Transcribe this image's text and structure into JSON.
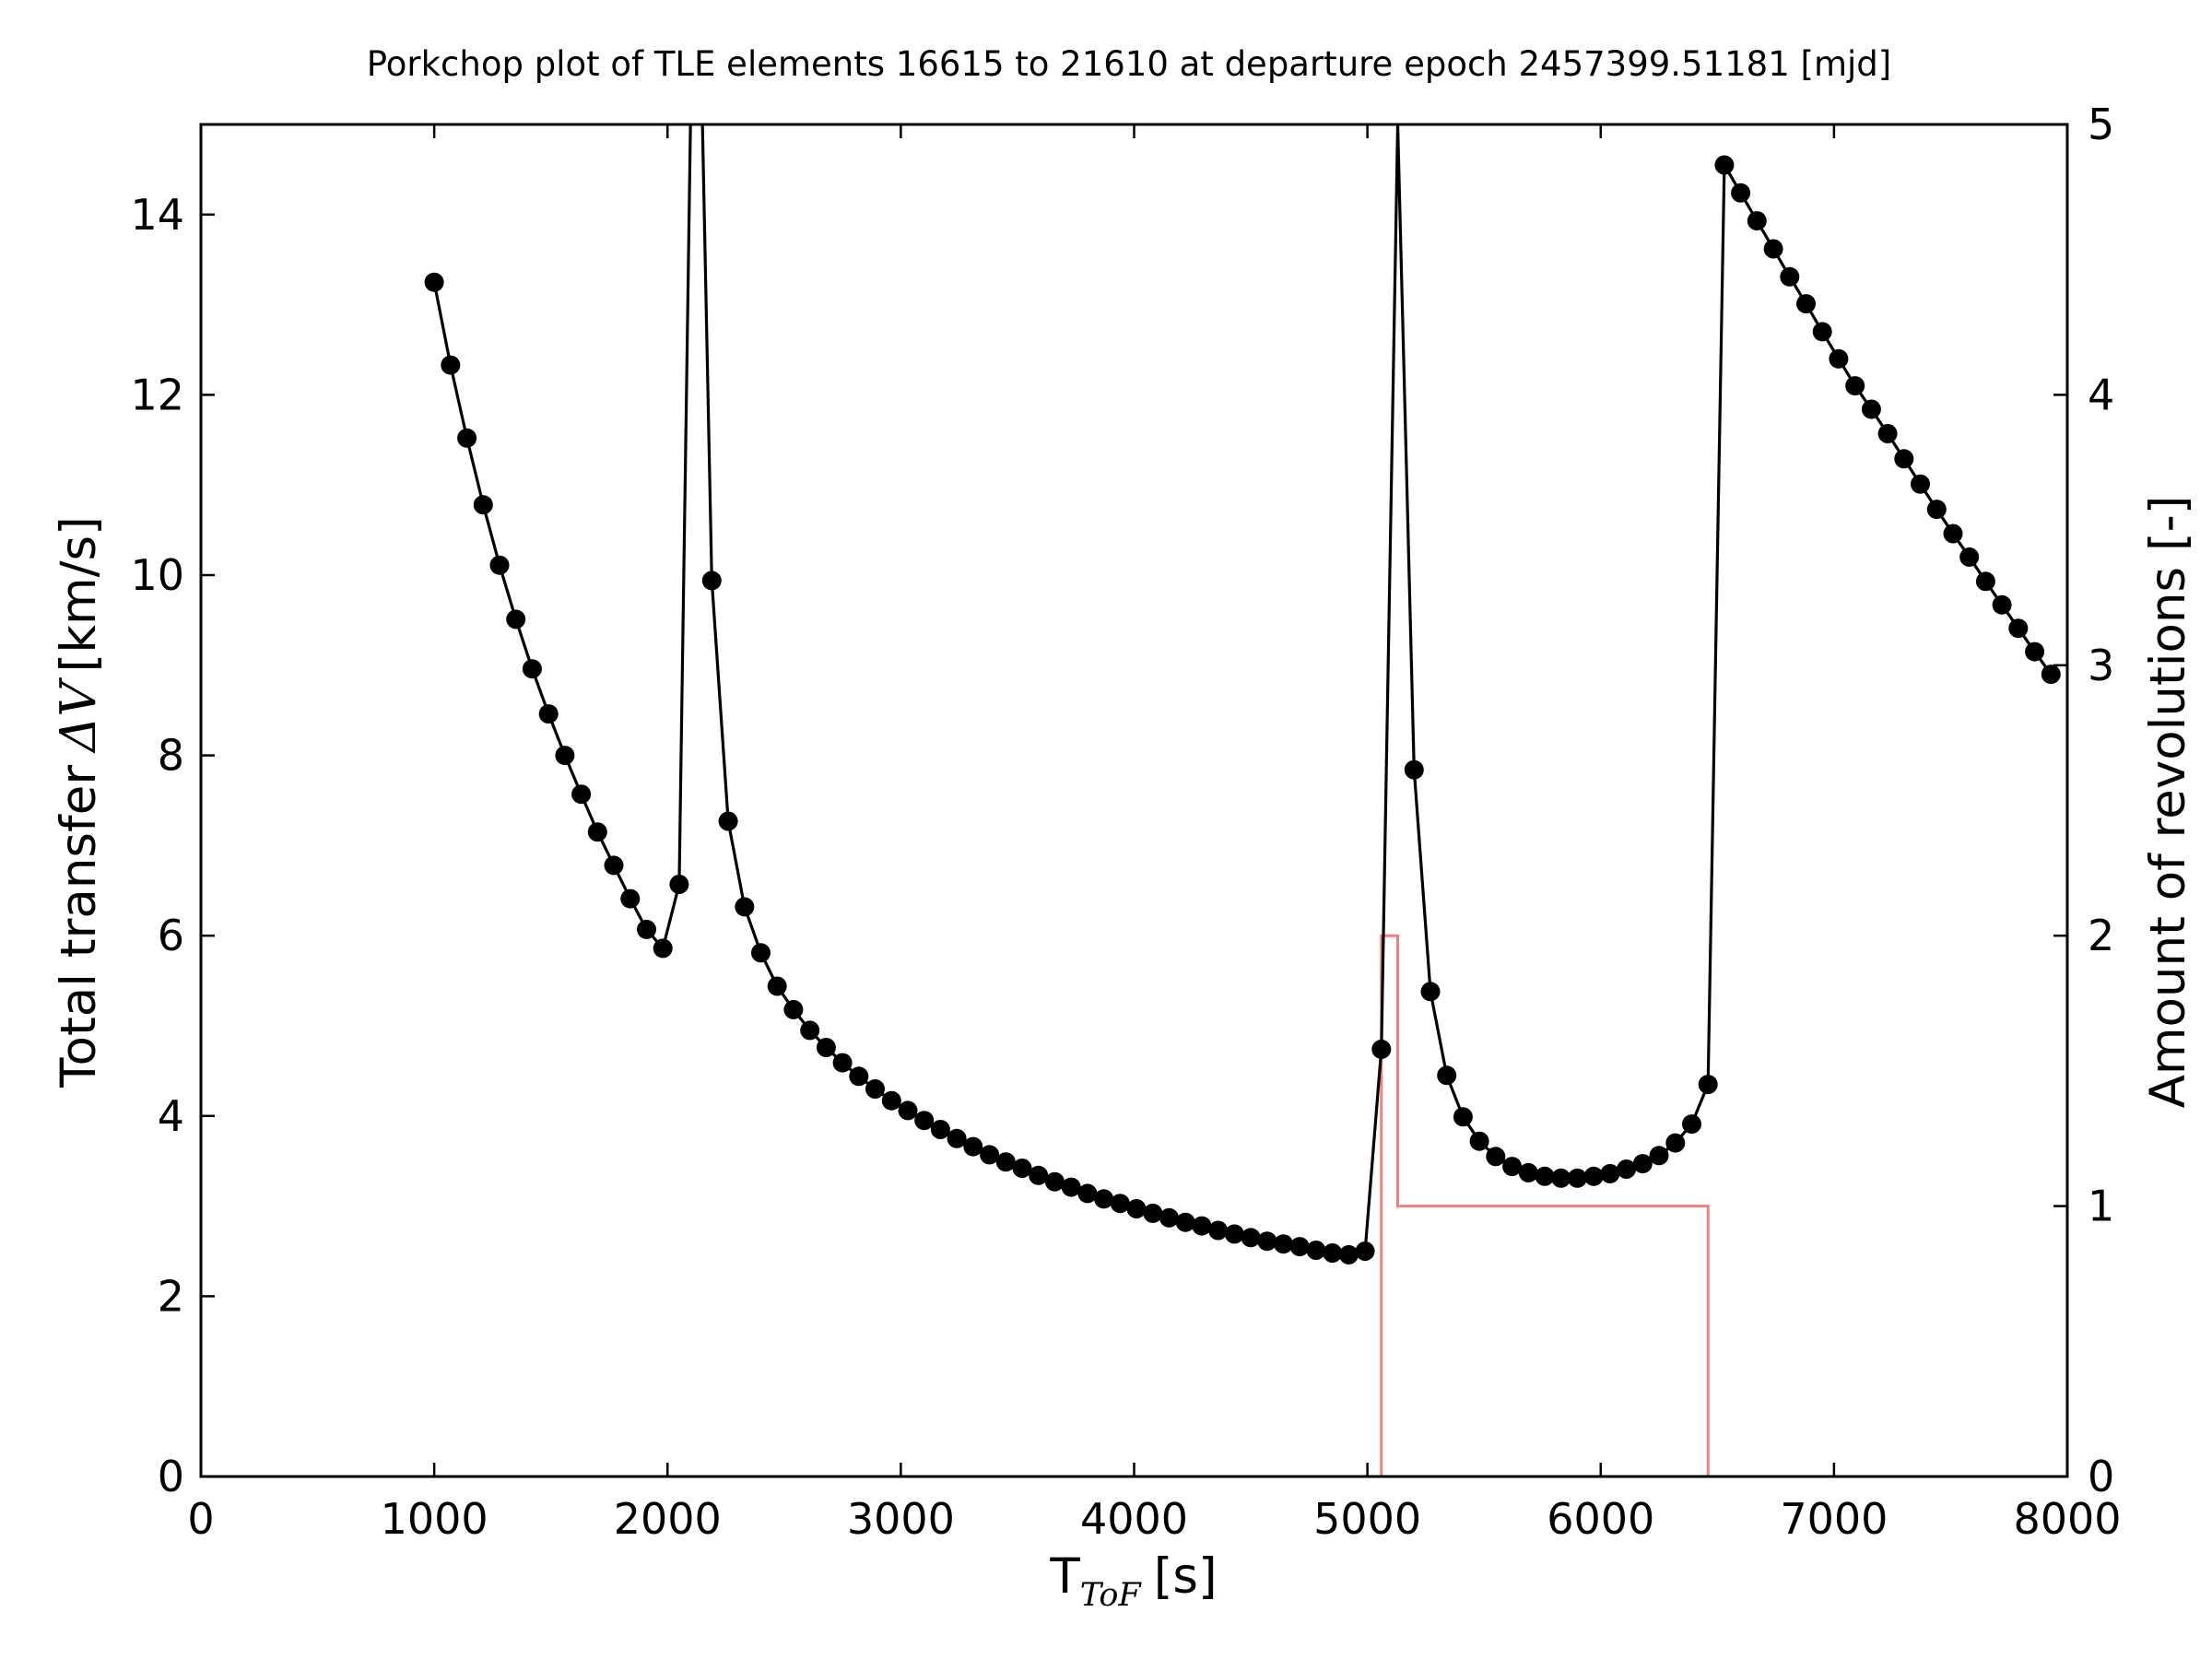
{
  "chart_data": {
    "type": "line",
    "title": "Porkchop plot of TLE elements 16615 to 21610 at departure epoch 2457399.51181 [mjd]",
    "xlabel": {
      "main": "T",
      "subscript": "ToF",
      "unit": "[s]"
    },
    "ylabel_left": {
      "prefix": "Total transfer",
      "symbol": "ΔV",
      "unit": "[km/s]"
    },
    "ylabel_right": "Amount of revolutions [-]",
    "xlim": [
      0,
      8000
    ],
    "ylim_left": [
      0,
      15
    ],
    "ylim_right": [
      0,
      5
    ],
    "xticks": [
      0,
      1000,
      2000,
      3000,
      4000,
      5000,
      6000,
      7000,
      8000
    ],
    "yticks_left": [
      0,
      2,
      4,
      6,
      8,
      10,
      12,
      14
    ],
    "yticks_right": [
      0,
      1,
      2,
      3,
      4,
      5
    ],
    "grid": false,
    "series": [
      {
        "axis": "left",
        "style": "line-with-markers",
        "color": "#000000",
        "x": [
          1000,
          1070,
          1140,
          1210,
          1280,
          1350,
          1420,
          1490,
          1560,
          1630,
          1700,
          1770,
          1840,
          1910,
          1980,
          2050,
          2120,
          2190,
          2260,
          2330,
          2400,
          2470,
          2540,
          2610,
          2680,
          2750,
          2820,
          2890,
          2960,
          3030,
          3100,
          3170,
          3240,
          3310,
          3380,
          3450,
          3520,
          3590,
          3660,
          3730,
          3800,
          3870,
          3940,
          4010,
          4080,
          4150,
          4220,
          4290,
          4360,
          4430,
          4500,
          4570,
          4640,
          4710,
          4780,
          4850,
          4920,
          4990,
          5060,
          5130,
          5200,
          5270,
          5340,
          5410,
          5480,
          5550,
          5620,
          5690,
          5760,
          5830,
          5900,
          5970,
          6040,
          6110,
          6180,
          6250,
          6320,
          6390,
          6460,
          6530,
          6600,
          6670,
          6740,
          6810,
          6880,
          6950,
          7020,
          7090,
          7160,
          7230,
          7300,
          7370,
          7440,
          7510,
          7580,
          7650,
          7720,
          7790,
          7860,
          7930
        ],
        "y": [
          13.25,
          12.33,
          11.52,
          10.78,
          10.11,
          9.51,
          8.96,
          8.46,
          8.0,
          7.57,
          7.15,
          6.78,
          6.41,
          6.07,
          5.86,
          6.57,
          null,
          9.94,
          7.27,
          6.32,
          5.81,
          5.44,
          5.18,
          4.95,
          4.76,
          4.59,
          4.44,
          4.3,
          4.17,
          4.06,
          3.95,
          3.85,
          3.75,
          3.66,
          3.57,
          3.49,
          3.42,
          3.34,
          3.27,
          3.21,
          3.14,
          3.08,
          3.03,
          2.97,
          2.92,
          2.87,
          2.82,
          2.78,
          2.73,
          2.69,
          2.65,
          2.61,
          2.58,
          2.55,
          2.51,
          2.48,
          2.46,
          2.5,
          4.74,
          null,
          7.84,
          5.38,
          4.45,
          3.99,
          3.72,
          3.55,
          3.44,
          3.37,
          3.33,
          3.31,
          3.31,
          3.33,
          3.36,
          3.41,
          3.47,
          3.56,
          3.7,
          3.91,
          4.35,
          14.55,
          14.24,
          13.93,
          13.62,
          13.31,
          13.01,
          12.7,
          12.4,
          12.1,
          11.84,
          11.57,
          11.29,
          11.01,
          10.73,
          10.46,
          10.2,
          9.93,
          9.67,
          9.41,
          9.15,
          8.9
        ],
        "peaks": [
          {
            "x": 2120,
            "y": "off-scale"
          },
          {
            "x": 5130,
            "y": 15.0
          }
        ]
      },
      {
        "axis": "right",
        "style": "step",
        "color": "#f08080",
        "x": [
          5060,
          5060,
          5130,
          5130,
          6460,
          6460
        ],
        "y": [
          0,
          2,
          2,
          1,
          1,
          0
        ]
      }
    ]
  }
}
